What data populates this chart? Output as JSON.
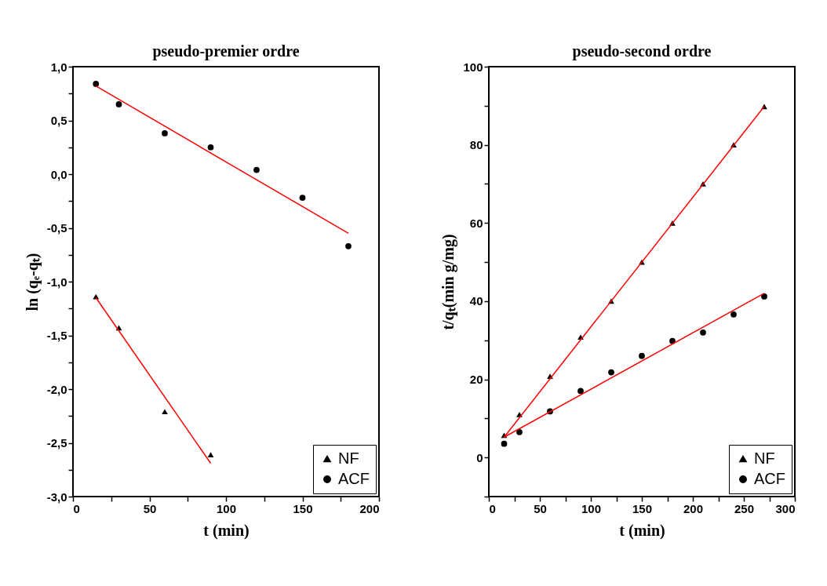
{
  "chart_data": [
    {
      "type": "scatter",
      "title": "pseudo-premier ordre",
      "xlabel": "t (min)",
      "ylabel": "ln (qₑ-qₜ)",
      "xlim": [
        0,
        200
      ],
      "ylim": [
        -3.0,
        1.0
      ],
      "xticks": [
        0,
        {
          "value": 25,
          "label": null
        },
        50,
        {
          "value": 75,
          "label": null
        },
        100,
        {
          "value": 125,
          "label": null
        },
        150,
        {
          "value": 175,
          "label": null
        },
        200
      ],
      "yticks": [
        {
          "value": -3.0,
          "label": "-3,0"
        },
        {
          "value": -2.75,
          "label": null
        },
        {
          "value": -2.5,
          "label": "-2,5"
        },
        {
          "value": -2.25,
          "label": null
        },
        {
          "value": -2.0,
          "label": "-2,0"
        },
        {
          "value": -1.75,
          "label": null
        },
        {
          "value": -1.5,
          "label": "-1,5"
        },
        {
          "value": -1.25,
          "label": null
        },
        {
          "value": -1.0,
          "label": "-1,0"
        },
        {
          "value": -0.75,
          "label": null
        },
        {
          "value": -0.5,
          "label": "-0,5"
        },
        {
          "value": -0.25,
          "label": null
        },
        {
          "value": 0.0,
          "label": "0,0"
        },
        {
          "value": 0.25,
          "label": null
        },
        {
          "value": 0.5,
          "label": "0,5"
        },
        {
          "value": 0.75,
          "label": null
        },
        {
          "value": 1.0,
          "label": "1,0"
        }
      ],
      "grid": false,
      "legend": "bottom right",
      "series": [
        {
          "name": "NF",
          "marker": "triangle",
          "color": "#000000",
          "x": [
            15,
            30,
            60,
            90
          ],
          "values": [
            -1.14,
            -1.43,
            -2.21,
            -2.61
          ]
        },
        {
          "name": "ACF",
          "marker": "circle",
          "color": "#000000",
          "x": [
            15,
            30,
            60,
            90,
            120,
            150,
            180
          ],
          "values": [
            0.84,
            0.65,
            0.38,
            0.25,
            0.04,
            -0.22,
            -0.67
          ]
        },
        {
          "type": "line",
          "color": "#ff0000",
          "x": [
            15,
            90
          ],
          "values": [
            -1.15,
            -2.69
          ]
        },
        {
          "type": "line",
          "color": "#ff0000",
          "x": [
            15,
            180
          ],
          "values": [
            0.82,
            -0.55
          ]
        }
      ]
    },
    {
      "type": "scatter",
      "title": "pseudo-second ordre",
      "xlabel": "t (min)",
      "ylabel": "t/qₜ(min g/mg)",
      "xlim": [
        0,
        300
      ],
      "ylim": [
        -10,
        100
      ],
      "xticks": [
        0,
        {
          "value": 25,
          "label": null
        },
        50,
        {
          "value": 75,
          "label": null
        },
        100,
        {
          "value": 125,
          "label": null
        },
        150,
        {
          "value": 175,
          "label": null
        },
        200,
        {
          "value": 225,
          "label": null
        },
        250,
        {
          "value": 275,
          "label": null
        },
        300
      ],
      "yticks": [
        {
          "value": -10,
          "label": null
        },
        0,
        {
          "value": 10,
          "label": null
        },
        20,
        {
          "value": 30,
          "label": null
        },
        40,
        {
          "value": 50,
          "label": null
        },
        60,
        {
          "value": 70,
          "label": null
        },
        80,
        {
          "value": 90,
          "label": null
        },
        100
      ],
      "grid": false,
      "legend": "bottom right",
      "series": [
        {
          "name": "NF",
          "marker": "triangle",
          "color": "#000000",
          "x": [
            15,
            30,
            60,
            90,
            120,
            150,
            180,
            210,
            240,
            270
          ],
          "values": [
            5.7,
            11,
            20.8,
            30.8,
            40,
            50,
            60,
            70,
            80,
            89.8
          ]
        },
        {
          "name": "ACF",
          "marker": "circle",
          "color": "#000000",
          "x": [
            15,
            30,
            60,
            90,
            120,
            150,
            180,
            210,
            240,
            270
          ],
          "values": [
            3.5,
            6.5,
            11.8,
            17,
            21.8,
            26,
            29.8,
            32,
            36.6,
            41.2
          ]
        },
        {
          "type": "line",
          "color": "#ff0000",
          "x": [
            15,
            270
          ],
          "values": [
            5.2,
            89.8
          ]
        },
        {
          "type": "line",
          "color": "#ff0000",
          "x": [
            15,
            270
          ],
          "values": [
            5.2,
            42
          ]
        }
      ]
    }
  ]
}
